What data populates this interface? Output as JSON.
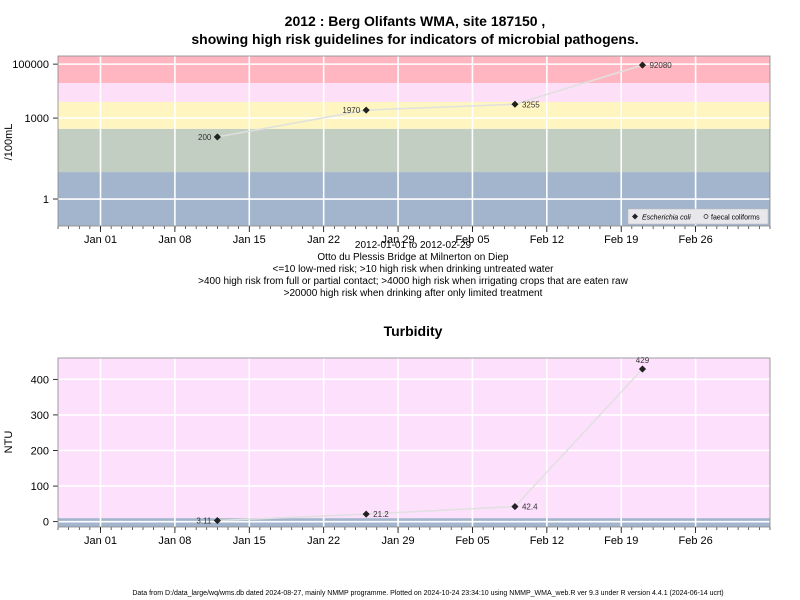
{
  "title_line1": "2012 : Berg Olifants WMA, site 187150 ,",
  "title_line2": "showing high risk guidelines for indicators of microbial pathogens.",
  "subtitle_lines": [
    "2012-01-01 to 2012-02-29",
    "Otto du Plessis Bridge at Milnerton on Diep",
    "<=10 low-med risk; >10 high risk when drinking untreated water",
    ">400 high risk from full or partial contact; >4000 high risk when irrigating crops that are eaten raw",
    ">20000 high risk when drinking after only limited treatment"
  ],
  "footer": "Data from D:/data_large/wq/wms.db dated 2024-08-27, mainly NMMP programme. Plotted on 2024-10-24 23:34:10 using NMMP_WMA_web.R ver 9.3 under R version 4.4.1 (2024-06-14 ucrt)",
  "colors": {
    "band_red": "#ffb6c1",
    "band_pink": "#fde0f7",
    "band_yellow": "#fff5c0",
    "band_green": "#c2cec2",
    "band_blue": "#a3b5cc",
    "turbidity_bg": "#fde0fc",
    "turbidity_low": "#a3b5cc",
    "line": "#e0e0e0",
    "grid": "#ffffff"
  },
  "chart_data": [
    {
      "type": "line",
      "title": "",
      "ylabel": "/100mL",
      "y_scale": "log",
      "ylim": [
        0.1,
        200000
      ],
      "xlim": [
        "2011-12-28",
        "2012-03-04"
      ],
      "x_ticks": [
        "Jan 01",
        "Jan 08",
        "Jan 15",
        "Jan 22",
        "Jan 29",
        "Feb 05",
        "Feb 12",
        "Feb 19",
        "Feb 26"
      ],
      "x_tick_dates": [
        "2012-01-01",
        "2012-01-08",
        "2012-01-15",
        "2012-01-22",
        "2012-01-29",
        "2012-02-05",
        "2012-02-12",
        "2012-02-19",
        "2012-02-26"
      ],
      "y_ticks": [
        1,
        1000,
        100000
      ],
      "y_tick_labels": [
        "1",
        "1000",
        "100000"
      ],
      "bands": [
        {
          "from": 0.1,
          "to": 10,
          "color": "#a3b5cc"
        },
        {
          "from": 10,
          "to": 400,
          "color": "#c2cec2"
        },
        {
          "from": 400,
          "to": 4000,
          "color": "#fff5c0"
        },
        {
          "from": 4000,
          "to": 20000,
          "color": "#fde0f7"
        },
        {
          "from": 20000,
          "to": 200000,
          "color": "#ffb6c1"
        }
      ],
      "series": [
        {
          "name": "Escherichia coli",
          "x": [
            "2012-01-12",
            "2012-01-26",
            "2012-02-09",
            "2012-02-21"
          ],
          "y": [
            200,
            1970,
            3255,
            92080
          ],
          "labels": [
            "200",
            "1970",
            "3255",
            "92080"
          ]
        }
      ],
      "legend": [
        "Escherichia coli",
        "faecal coliforms"
      ],
      "legend_placement": "bottom-right",
      "grid": true
    },
    {
      "type": "line",
      "title": "Turbidity",
      "ylabel": "NTU",
      "ylim": [
        -15,
        460
      ],
      "xlim": [
        "2011-12-28",
        "2012-03-04"
      ],
      "x_ticks": [
        "Jan 01",
        "Jan 08",
        "Jan 15",
        "Jan 22",
        "Jan 29",
        "Feb 05",
        "Feb 12",
        "Feb 19",
        "Feb 26"
      ],
      "x_tick_dates": [
        "2012-01-01",
        "2012-01-08",
        "2012-01-15",
        "2012-01-22",
        "2012-01-29",
        "2012-02-05",
        "2012-02-12",
        "2012-02-19",
        "2012-02-26"
      ],
      "y_ticks": [
        0,
        100,
        200,
        300,
        400
      ],
      "y_tick_labels": [
        "0",
        "100",
        "200",
        "300",
        "400"
      ],
      "bands": [
        {
          "from": -15,
          "to": 10,
          "color": "#a3b5cc"
        },
        {
          "from": 10,
          "to": 460,
          "color": "#fde0fc"
        }
      ],
      "series": [
        {
          "name": "",
          "x": [
            "2012-01-12",
            "2012-01-26",
            "2012-02-09",
            "2012-02-21"
          ],
          "y": [
            3.11,
            21.2,
            42.4,
            429
          ],
          "labels": [
            "3.11",
            "21.2",
            "42.4",
            "429"
          ]
        }
      ],
      "grid": true
    }
  ]
}
